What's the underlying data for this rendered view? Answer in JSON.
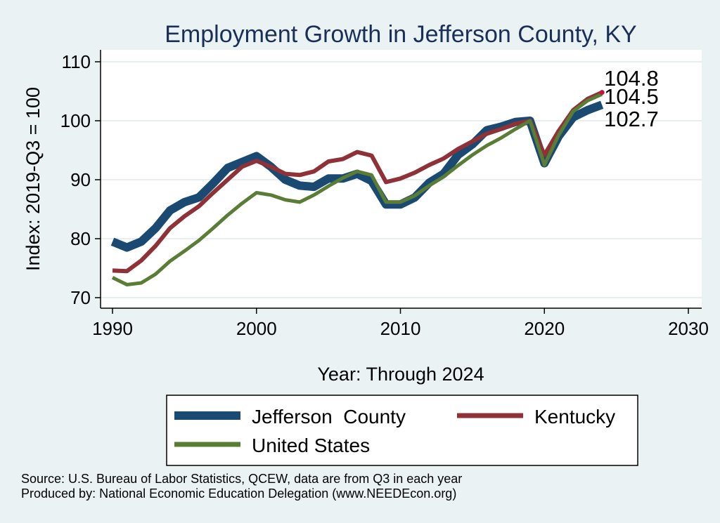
{
  "chart_data": {
    "type": "line",
    "title": "Employment Growth in Jefferson County, KY",
    "xlabel": "Year: Through 2024",
    "ylabel": "Index: 2019-Q3 = 100",
    "xlim": [
      1990,
      2030
    ],
    "ylim": [
      70,
      110
    ],
    "xticks": [
      1990,
      2000,
      2010,
      2020,
      2030
    ],
    "yticks": [
      70,
      80,
      90,
      100,
      110
    ],
    "grid": "horizontal",
    "x": [
      1990,
      1991,
      1992,
      1993,
      1994,
      1995,
      1996,
      1997,
      1998,
      1999,
      2000,
      2001,
      2002,
      2003,
      2004,
      2005,
      2006,
      2007,
      2008,
      2009,
      2010,
      2011,
      2012,
      2013,
      2014,
      2015,
      2016,
      2017,
      2018,
      2019,
      2020,
      2021,
      2022,
      2023,
      2024
    ],
    "series": [
      {
        "name": "Jefferson  County",
        "color": "#1a4a72",
        "values": [
          79.5,
          78.5,
          79.5,
          81.8,
          84.8,
          86.2,
          87.0,
          89.4,
          92.0,
          93.0,
          94.0,
          92.2,
          90.0,
          89.0,
          88.8,
          90.2,
          90.2,
          91.0,
          89.8,
          85.8,
          85.8,
          87.0,
          89.5,
          91.0,
          94.2,
          96.0,
          98.4,
          99.0,
          99.8,
          100.0,
          92.8,
          97.4,
          100.6,
          101.8,
          102.7
        ]
      },
      {
        "name": "Kentucky",
        "color": "#8e3238",
        "values": [
          74.6,
          74.5,
          76.3,
          78.8,
          81.8,
          83.8,
          85.5,
          87.8,
          90.0,
          92.2,
          93.2,
          92.2,
          91.0,
          90.8,
          91.4,
          93.1,
          93.5,
          94.7,
          94.1,
          89.6,
          90.2,
          91.2,
          92.5,
          93.6,
          95.2,
          96.5,
          97.8,
          98.6,
          99.5,
          100.0,
          94.2,
          98.3,
          101.8,
          103.7,
          104.8
        ]
      },
      {
        "name": "United States",
        "color": "#5a7d35",
        "values": [
          73.4,
          72.2,
          72.5,
          74.0,
          76.2,
          77.9,
          79.7,
          81.8,
          84.0,
          86.0,
          87.8,
          87.4,
          86.6,
          86.2,
          87.4,
          88.9,
          90.3,
          91.4,
          90.8,
          86.2,
          86.2,
          87.3,
          89.0,
          90.5,
          92.4,
          94.2,
          95.8,
          97.1,
          98.6,
          100.0,
          92.5,
          97.6,
          101.6,
          103.4,
          104.5
        ]
      }
    ],
    "end_labels": [
      "102.7",
      "104.8",
      "104.5"
    ],
    "legend": {
      "position": "bottom",
      "items": [
        "Jefferson  County",
        "Kentucky",
        "United States"
      ]
    },
    "notes": [
      "Source: U.S. Bureau of Labor Statistics, QCEW, data are from Q3 in each year",
      "Produced by: National Economic Education Delegation (www.NEEDEcon.org)"
    ]
  }
}
